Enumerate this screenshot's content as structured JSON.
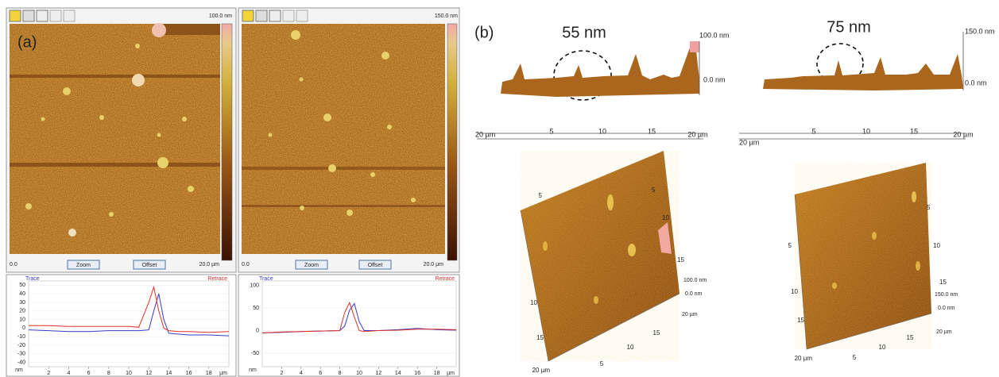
{
  "panel_a": {
    "label": "(a)",
    "images": [
      {
        "scale_max": "100.0 nm",
        "x_start": "0.0",
        "x_end": "20.0 µm",
        "buttons": [
          "Zoom",
          "Offset"
        ]
      },
      {
        "scale_max": "150.0 nm",
        "x_start": "0.0",
        "x_end": "20.0 µm",
        "buttons": [
          "Zoom",
          "Offset"
        ]
      }
    ],
    "profiles": [
      {
        "y_unit": "nm",
        "x_unit": "µm",
        "xlim": [
          0,
          20
        ],
        "ylim": [
          -45,
          55
        ],
        "xticks": [
          2,
          4,
          6,
          8,
          10,
          12,
          14,
          16,
          18
        ],
        "yticks": [
          50,
          40,
          30,
          20,
          10,
          0,
          -10,
          -20,
          -30,
          -40
        ],
        "x": [
          0,
          2,
          4,
          6,
          8,
          10,
          11,
          12,
          12.5,
          13,
          13.5,
          14,
          15,
          16,
          18,
          20
        ],
        "series": [
          {
            "name": "Trace",
            "color": "#3a3ac8",
            "values": [
              -2,
              -3,
              -4,
              -4,
              -3,
              -3,
              -3,
              -2,
              20,
              40,
              10,
              -6,
              -7,
              -8,
              -8,
              -9
            ]
          },
          {
            "name": "Retrace",
            "color": "#e0302a",
            "values": [
              3,
              3,
              2,
              2,
              2,
              2,
              1,
              30,
              48,
              20,
              0,
              -3,
              -4,
              -4,
              -5,
              -4
            ]
          }
        ]
      },
      {
        "y_unit": "nm",
        "x_unit": "µm",
        "xlim": [
          0,
          20
        ],
        "ylim": [
          -80,
          110
        ],
        "xticks": [
          2,
          4,
          6,
          8,
          10,
          12,
          14,
          16,
          18
        ],
        "yticks": [
          100,
          50,
          0,
          -50
        ],
        "x": [
          0,
          2,
          4,
          6,
          8,
          8.5,
          9,
          9.5,
          10,
          10.5,
          12,
          14,
          16,
          18,
          20
        ],
        "series": [
          {
            "name": "Trace",
            "color": "#3a3ac8",
            "values": [
              -5,
              -4,
              -2,
              -1,
              0,
              10,
              45,
              60,
              20,
              0,
              0,
              2,
              5,
              2,
              1
            ]
          },
          {
            "name": "Retrace",
            "color": "#e0302a",
            "values": [
              -5,
              -3,
              -2,
              -1,
              0,
              40,
              62,
              30,
              0,
              -2,
              0,
              1,
              3,
              3,
              2
            ]
          }
        ]
      }
    ]
  },
  "panel_b": {
    "label": "(b)",
    "profiles_3d": [
      {
        "height_label": "55 nm",
        "scale_top": "100.0 nm",
        "scale_zero": "0.0 nm",
        "axis_ticks": [
          "20 µm",
          5,
          10,
          15,
          "20 µm"
        ]
      },
      {
        "height_label": "75 nm",
        "scale_top": "150.0 nm",
        "scale_zero": "0.0 nm",
        "axis_ticks": [
          "20 µm",
          5,
          10,
          15,
          "20 µm"
        ]
      }
    ],
    "surfaces": [
      {
        "edge_ticks": [
          5,
          10,
          15,
          "20 µm"
        ],
        "side_ticks": [
          5,
          10,
          15
        ],
        "bottom_ticks": [
          5,
          10,
          15
        ],
        "scale_top": "100.0 nm",
        "scale_zero": "0.0 nm",
        "scale_x": "20 µm"
      },
      {
        "edge_ticks": [
          5,
          10,
          15,
          "20 µm"
        ],
        "side_ticks": [
          5,
          10,
          15
        ],
        "bottom_ticks": [
          5,
          10,
          15
        ],
        "scale_top": "150.0 nm",
        "scale_zero": "0.0 nm",
        "scale_x": "20 µm"
      }
    ]
  }
}
